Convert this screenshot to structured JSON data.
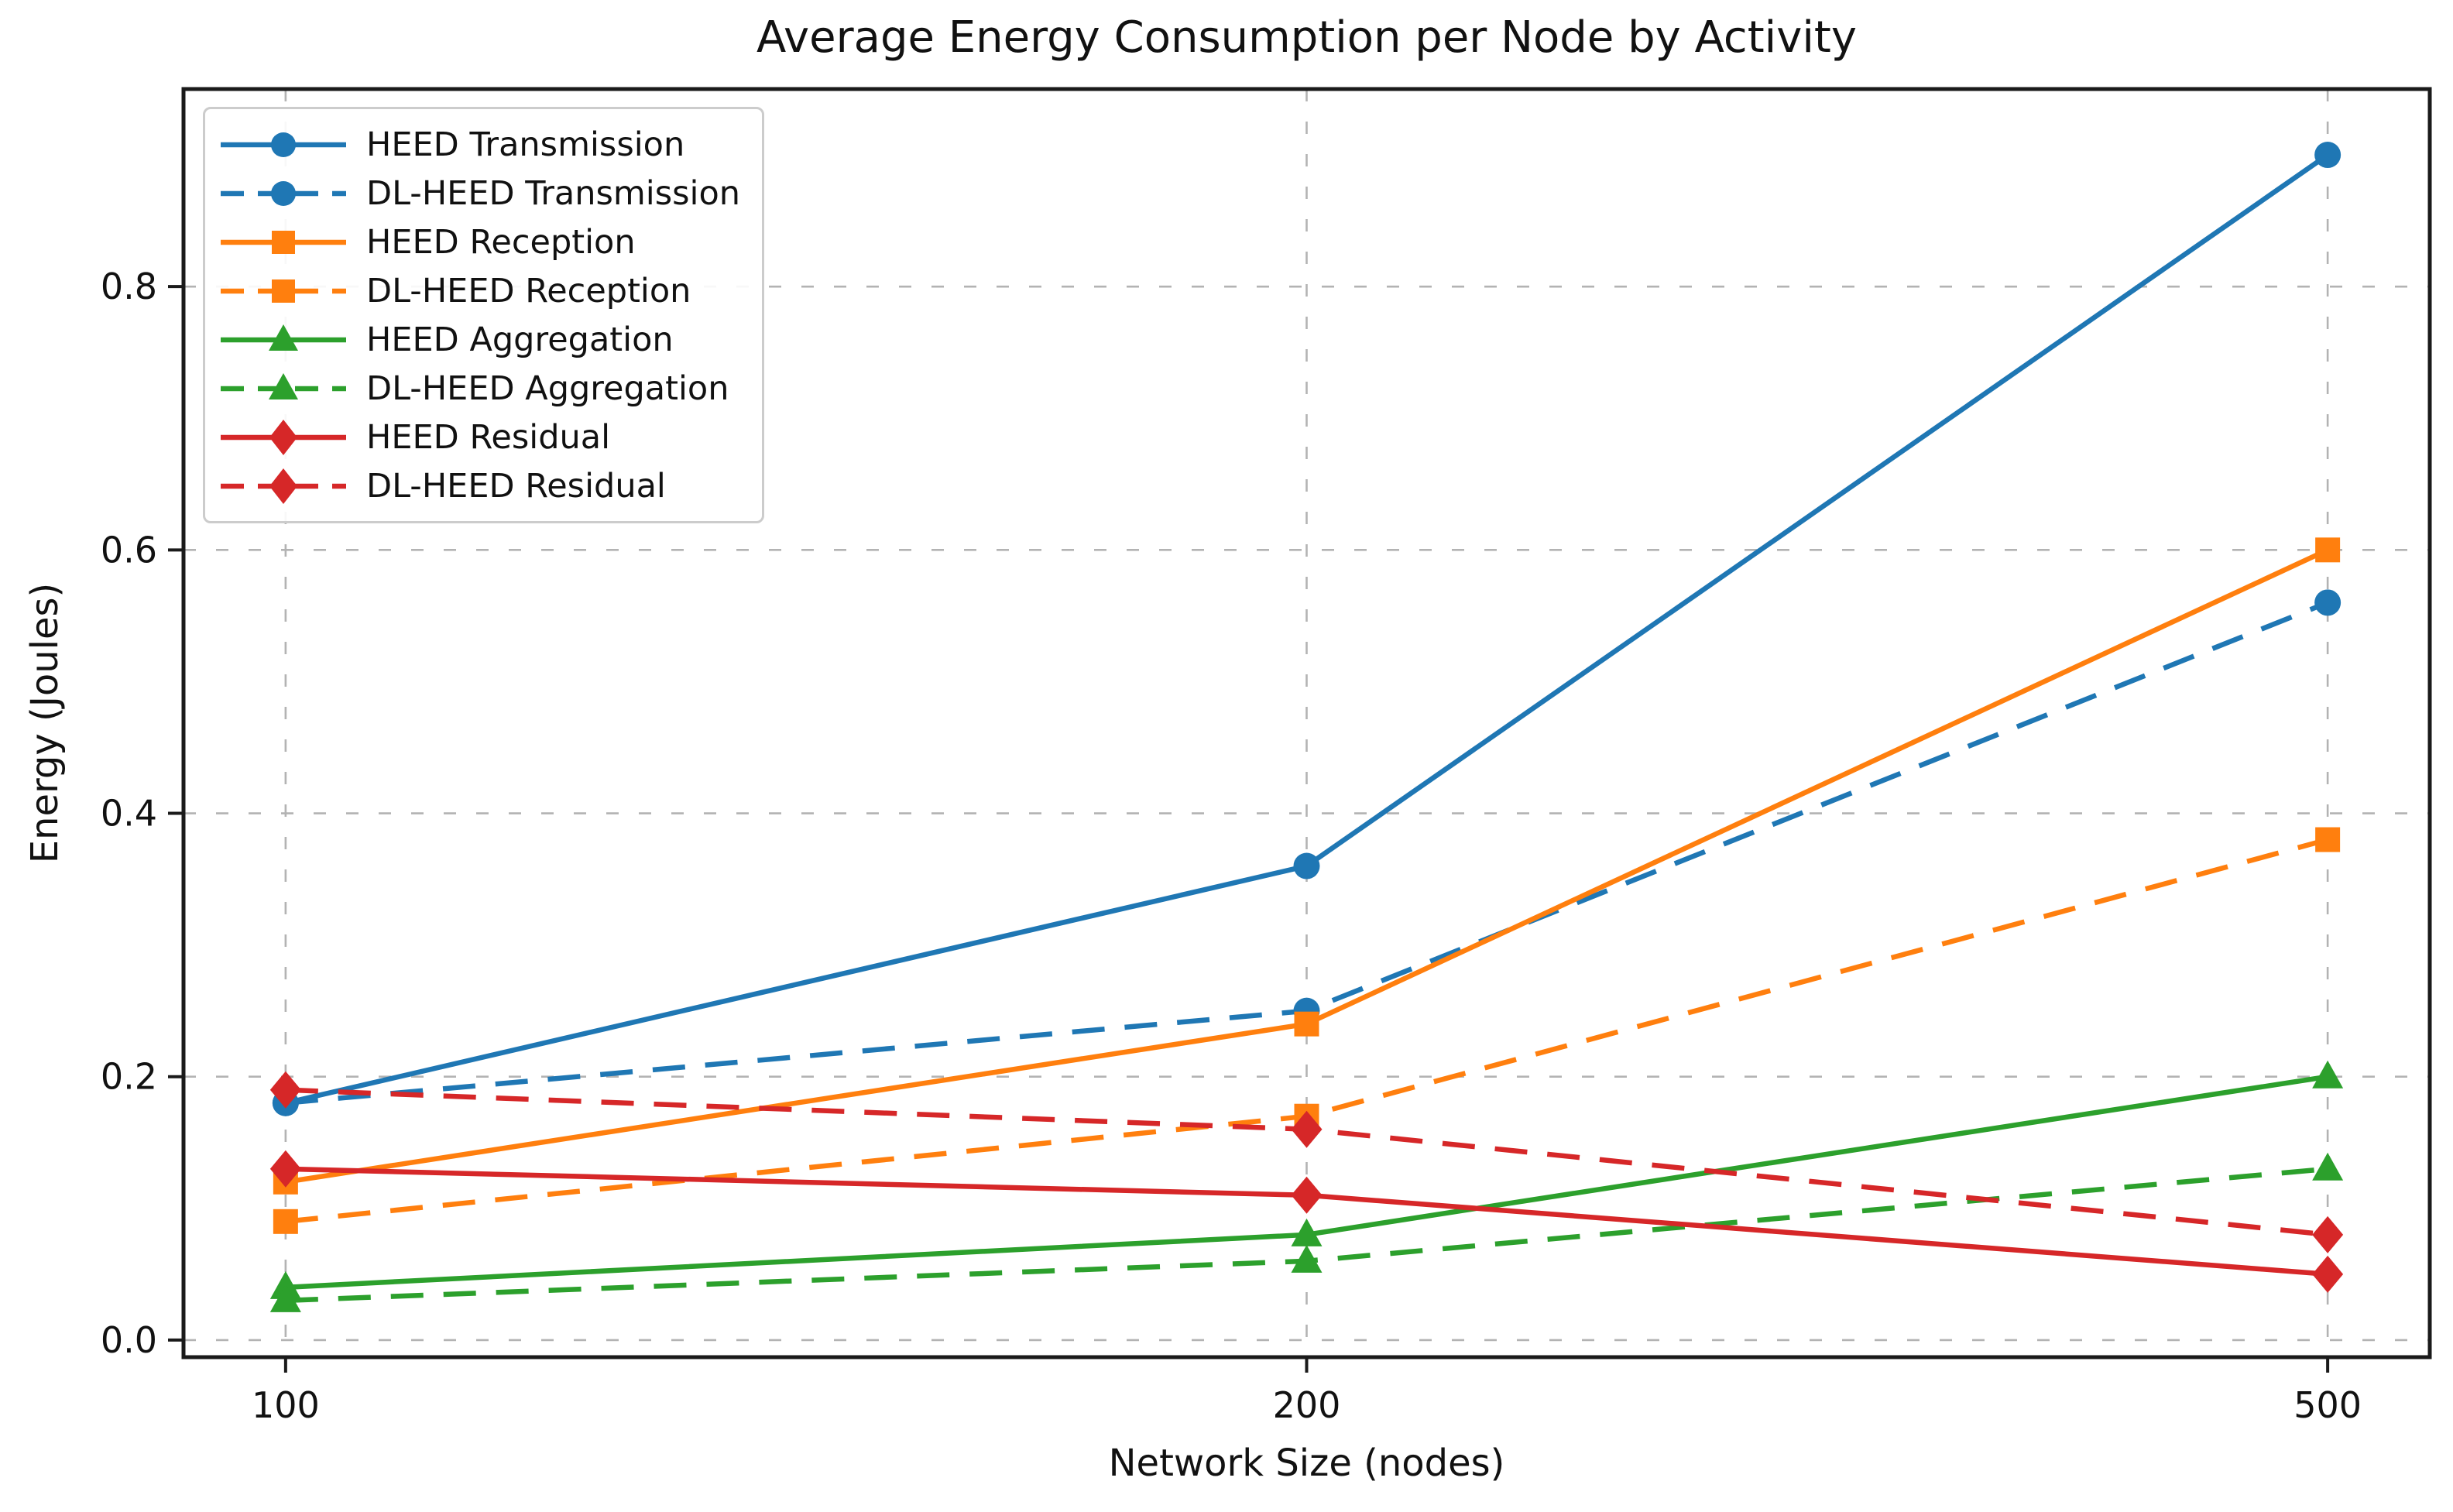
{
  "chart_data": {
    "type": "line",
    "title": "Average Energy Consumption per Node by Activity",
    "xlabel": "Network Size (nodes)",
    "ylabel": "Energy (Joules)",
    "categories": [
      100,
      200,
      500
    ],
    "x_tick_labels": [
      "100",
      "200",
      "500"
    ],
    "y_ticks": [
      0.0,
      0.2,
      0.4,
      0.6,
      0.8
    ],
    "y_tick_labels": [
      "0.0",
      "0.2",
      "0.4",
      "0.6",
      "0.8"
    ],
    "ylim": [
      -0.013,
      0.95
    ],
    "x_spacing": "categorical-equal",
    "grid": true,
    "grid_style": "dashed",
    "legend_position": "upper left",
    "series": [
      {
        "name": "HEED Transmission",
        "color": "#1f77b4",
        "line_style": "solid",
        "marker": "circle",
        "values": [
          0.18,
          0.36,
          0.9
        ]
      },
      {
        "name": "DL-HEED Transmission",
        "color": "#1f77b4",
        "line_style": "dashed",
        "marker": "circle",
        "values": [
          0.18,
          0.25,
          0.56
        ]
      },
      {
        "name": "HEED Reception",
        "color": "#ff7f0e",
        "line_style": "solid",
        "marker": "square",
        "values": [
          0.12,
          0.24,
          0.6
        ]
      },
      {
        "name": "DL-HEED Reception",
        "color": "#ff7f0e",
        "line_style": "dashed",
        "marker": "square",
        "values": [
          0.09,
          0.17,
          0.38
        ]
      },
      {
        "name": "HEED Aggregation",
        "color": "#2ca02c",
        "line_style": "solid",
        "marker": "triangle",
        "values": [
          0.04,
          0.08,
          0.2
        ]
      },
      {
        "name": "DL-HEED Aggregation",
        "color": "#2ca02c",
        "line_style": "dashed",
        "marker": "triangle",
        "values": [
          0.03,
          0.06,
          0.13
        ]
      },
      {
        "name": "HEED Residual",
        "color": "#d62728",
        "line_style": "solid",
        "marker": "diamond",
        "values": [
          0.13,
          0.11,
          0.05
        ]
      },
      {
        "name": "DL-HEED Residual",
        "color": "#d62728",
        "line_style": "dashed",
        "marker": "diamond",
        "values": [
          0.19,
          0.16,
          0.08
        ]
      }
    ]
  },
  "colors": {
    "background": "#ffffff",
    "grid": "#b3b3b3",
    "spine": "#1a1a1a",
    "tick": "#1a1a1a",
    "text": "#111111",
    "legend_border": "#cccccc"
  }
}
